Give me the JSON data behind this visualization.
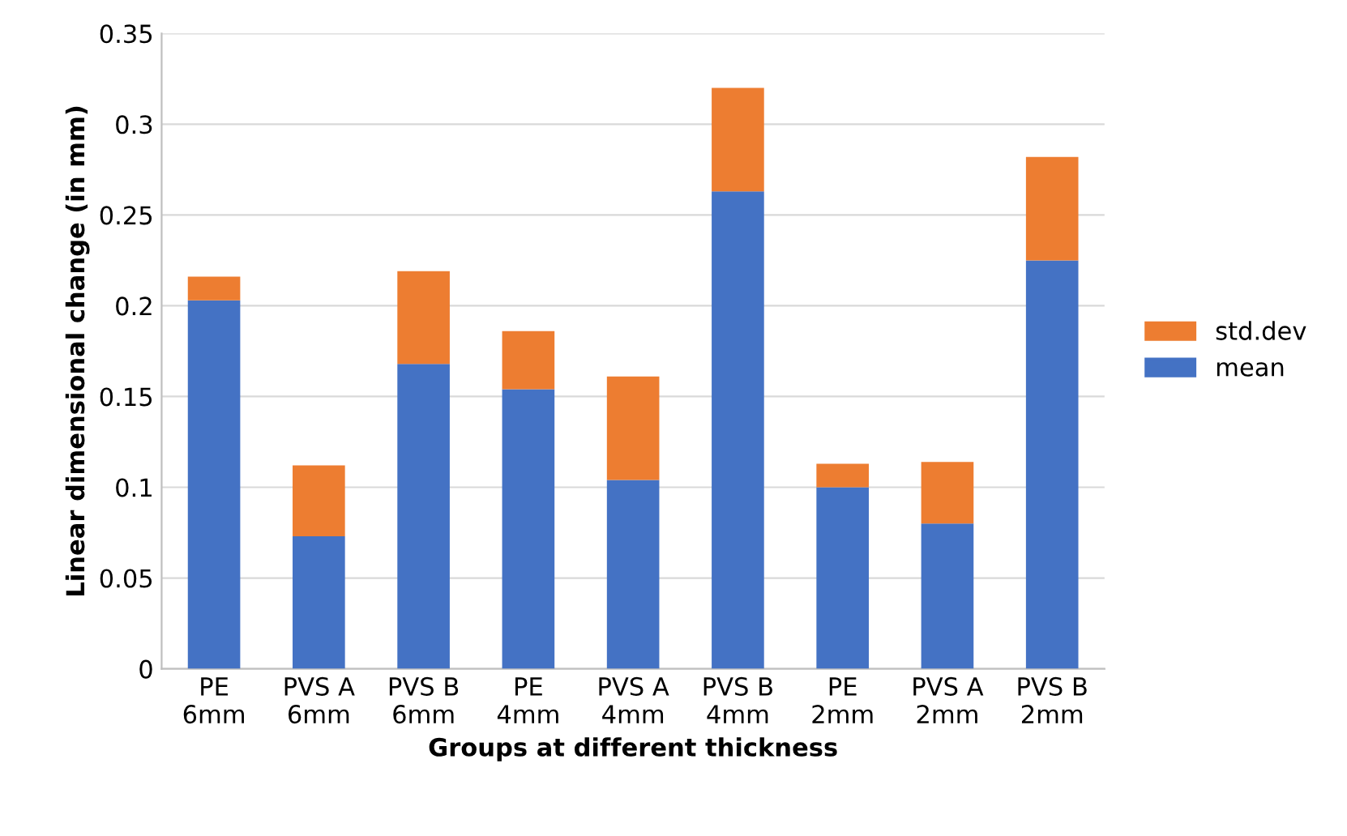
{
  "chart_data": {
    "type": "bar",
    "stacked": true,
    "xlabel": "Groups at different thickness",
    "ylabel": "Linear dimensional change (in mm)",
    "categories": [
      "PE\n6mm",
      "PVS A\n6mm",
      "PVS B\n6mm",
      "PE\n4mm",
      "PVS A\n4mm",
      "PVS B\n4mm",
      "PE\n2mm",
      "PVS A\n2mm",
      "PVS B\n2mm"
    ],
    "series": [
      {
        "name": "mean",
        "color": "#4472c4",
        "values": [
          0.203,
          0.073,
          0.168,
          0.154,
          0.104,
          0.263,
          0.1,
          0.08,
          0.225
        ]
      },
      {
        "name": "std.dev",
        "color": "#ed7d31",
        "values": [
          0.013,
          0.039,
          0.051,
          0.032,
          0.057,
          0.057,
          0.013,
          0.034,
          0.057
        ]
      }
    ],
    "ylim": [
      0,
      0.35
    ],
    "yticks": [
      {
        "value": 0,
        "label": "0"
      },
      0.05,
      0.1,
      0.15,
      0.2,
      0.25,
      0.3,
      0.35
    ],
    "grid": "y",
    "legend": "right"
  }
}
